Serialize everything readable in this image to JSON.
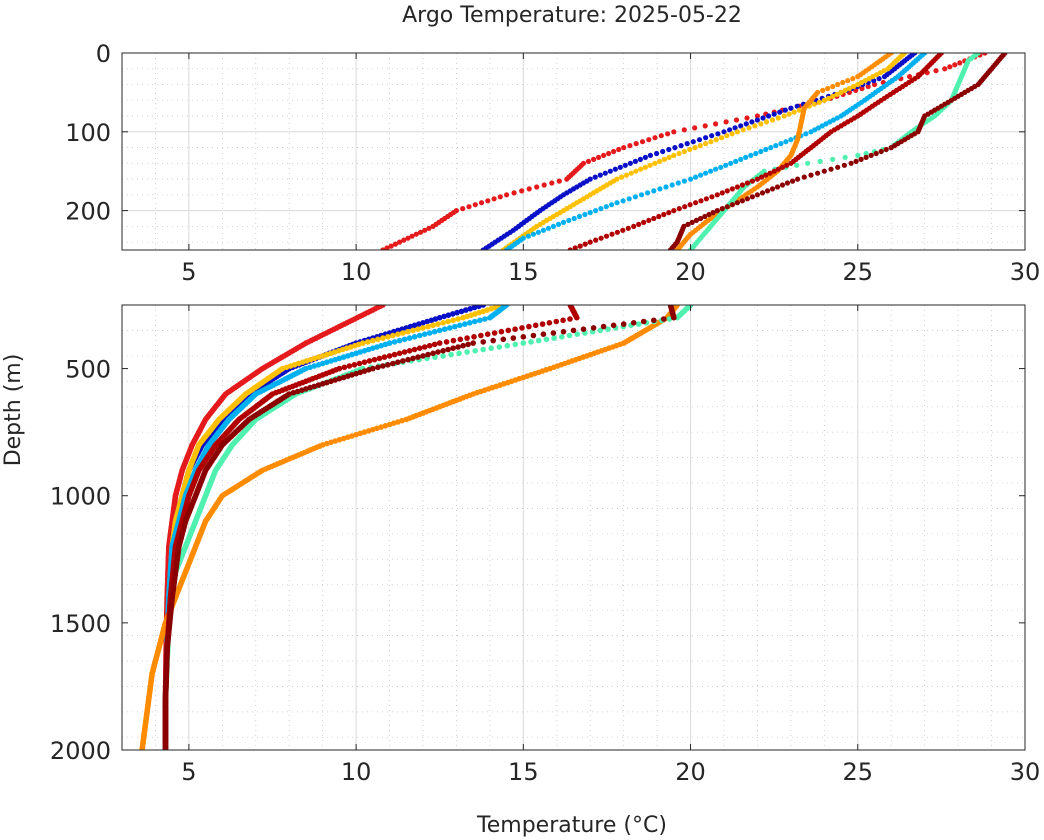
{
  "chart_data": {
    "type": "scatter",
    "title": "Argo Temperature: 2025-05-22",
    "xlabel": "Temperature (°C)",
    "ylabel": "Depth (m)",
    "grid": true,
    "panels": [
      {
        "name": "upper",
        "xlim": [
          3,
          30
        ],
        "ylim": [
          0,
          250
        ],
        "y_reversed": true,
        "xticks": [
          5,
          10,
          15,
          20,
          25,
          30
        ],
        "yticks": [
          0,
          100,
          200
        ]
      },
      {
        "name": "lower",
        "xlim": [
          3,
          30
        ],
        "ylim": [
          250,
          2000
        ],
        "y_reversed": true,
        "xticks": [
          5,
          10,
          15,
          20,
          25,
          30
        ],
        "yticks": [
          500,
          1000,
          1500,
          2000
        ]
      }
    ],
    "series": [
      {
        "color": "#e41a1c",
        "profile": [
          [
            0,
            28.8
          ],
          [
            20,
            27.6
          ],
          [
            40,
            25.5
          ],
          [
            60,
            24.0
          ],
          [
            80,
            22.0
          ],
          [
            100,
            19.5
          ],
          [
            120,
            18.0
          ],
          [
            140,
            16.8
          ],
          [
            160,
            16.3
          ],
          [
            180,
            14.5
          ],
          [
            200,
            13.0
          ],
          [
            220,
            12.3
          ],
          [
            250,
            10.8
          ],
          [
            400,
            8.5
          ],
          [
            500,
            7.2
          ],
          [
            600,
            6.1
          ],
          [
            700,
            5.5
          ],
          [
            800,
            5.1
          ],
          [
            900,
            4.8
          ],
          [
            1000,
            4.6
          ],
          [
            1100,
            4.5
          ],
          [
            1200,
            4.4
          ],
          [
            1400,
            4.35
          ],
          [
            1600,
            4.32
          ],
          [
            1800,
            4.3
          ],
          [
            2000,
            4.3
          ]
        ]
      },
      {
        "color": "#0a10c8",
        "profile": [
          [
            0,
            26.7
          ],
          [
            30,
            25.8
          ],
          [
            50,
            24.5
          ],
          [
            70,
            23.0
          ],
          [
            100,
            21.0
          ],
          [
            130,
            18.8
          ],
          [
            160,
            17.0
          ],
          [
            180,
            16.2
          ],
          [
            200,
            15.5
          ],
          [
            225,
            14.7
          ],
          [
            250,
            13.8
          ],
          [
            300,
            12.5
          ],
          [
            400,
            10.0
          ],
          [
            500,
            8.0
          ],
          [
            600,
            6.8
          ],
          [
            700,
            6.0
          ],
          [
            800,
            5.4
          ],
          [
            900,
            5.0
          ],
          [
            1000,
            4.8
          ],
          [
            1100,
            4.6
          ],
          [
            1200,
            4.5
          ],
          [
            1400,
            4.4
          ],
          [
            1600,
            4.35
          ],
          [
            1800,
            4.3
          ],
          [
            2000,
            4.3
          ]
        ]
      },
      {
        "color": "#ffc000",
        "profile": [
          [
            0,
            26.4
          ],
          [
            20,
            25.9
          ],
          [
            40,
            25.0
          ],
          [
            60,
            24.0
          ],
          [
            80,
            22.8
          ],
          [
            100,
            21.4
          ],
          [
            130,
            19.5
          ],
          [
            160,
            17.8
          ],
          [
            190,
            16.6
          ],
          [
            220,
            15.4
          ],
          [
            250,
            14.4
          ],
          [
            300,
            13.2
          ],
          [
            400,
            10.2
          ],
          [
            500,
            7.8
          ],
          [
            600,
            6.7
          ],
          [
            700,
            5.9
          ],
          [
            800,
            5.3
          ],
          [
            900,
            5.0
          ],
          [
            1000,
            4.8
          ],
          [
            1100,
            4.6
          ],
          [
            1200,
            4.5
          ],
          [
            1400,
            4.4
          ],
          [
            1600,
            4.35
          ],
          [
            1800,
            4.3
          ],
          [
            2000,
            4.3
          ]
        ]
      },
      {
        "color": "#00b0f0",
        "profile": [
          [
            0,
            27.0
          ],
          [
            30,
            26.2
          ],
          [
            60,
            25.2
          ],
          [
            80,
            24.5
          ],
          [
            100,
            23.6
          ],
          [
            130,
            21.8
          ],
          [
            160,
            20.0
          ],
          [
            190,
            17.8
          ],
          [
            215,
            16.2
          ],
          [
            235,
            15.0
          ],
          [
            250,
            14.5
          ],
          [
            300,
            14.0
          ],
          [
            400,
            11.0
          ],
          [
            500,
            8.5
          ],
          [
            600,
            7.0
          ],
          [
            700,
            6.2
          ],
          [
            800,
            5.6
          ],
          [
            900,
            5.2
          ],
          [
            1000,
            4.9
          ],
          [
            1100,
            4.7
          ],
          [
            1200,
            4.5
          ],
          [
            1400,
            4.4
          ],
          [
            1600,
            4.35
          ],
          [
            1800,
            4.3
          ],
          [
            2000,
            4.3
          ]
        ]
      },
      {
        "color": "#ff8c00",
        "profile": [
          [
            0,
            26.0
          ],
          [
            30,
            25.0
          ],
          [
            50,
            23.8
          ],
          [
            70,
            23.4
          ],
          [
            90,
            23.3
          ],
          [
            110,
            23.2
          ],
          [
            130,
            23.0
          ],
          [
            150,
            22.6
          ],
          [
            170,
            22.0
          ],
          [
            190,
            21.3
          ],
          [
            210,
            20.6
          ],
          [
            230,
            20.0
          ],
          [
            250,
            19.6
          ],
          [
            300,
            19.3
          ],
          [
            400,
            18.0
          ],
          [
            500,
            15.8
          ],
          [
            600,
            13.5
          ],
          [
            700,
            11.5
          ],
          [
            800,
            9.0
          ],
          [
            900,
            7.2
          ],
          [
            1000,
            6.0
          ],
          [
            1100,
            5.5
          ],
          [
            1200,
            5.2
          ],
          [
            1300,
            4.9
          ],
          [
            1400,
            4.6
          ],
          [
            1500,
            4.3
          ],
          [
            1600,
            4.1
          ],
          [
            1700,
            3.9
          ],
          [
            1800,
            3.8
          ],
          [
            1900,
            3.7
          ],
          [
            2000,
            3.6
          ]
        ]
      },
      {
        "color": "#50f0b0",
        "profile": [
          [
            0,
            28.6
          ],
          [
            10,
            28.3
          ],
          [
            30,
            28.1
          ],
          [
            60,
            27.8
          ],
          [
            80,
            27.3
          ],
          [
            100,
            26.6
          ],
          [
            120,
            26.0
          ],
          [
            130,
            25.0
          ],
          [
            140,
            23.5
          ],
          [
            150,
            22.2
          ],
          [
            170,
            21.6
          ],
          [
            190,
            21.2
          ],
          [
            210,
            20.8
          ],
          [
            230,
            20.4
          ],
          [
            250,
            20.0
          ],
          [
            300,
            19.6
          ],
          [
            400,
            15.0
          ],
          [
            500,
            10.2
          ],
          [
            600,
            8.2
          ],
          [
            700,
            7.0
          ],
          [
            800,
            6.3
          ],
          [
            900,
            5.8
          ],
          [
            1000,
            5.5
          ],
          [
            1100,
            5.2
          ],
          [
            1200,
            4.9
          ],
          [
            1300,
            4.6
          ],
          [
            1500,
            4.4
          ],
          [
            1800,
            4.3
          ],
          [
            2000,
            4.3
          ]
        ]
      },
      {
        "color": "#b00000",
        "profile": [
          [
            0,
            27.5
          ],
          [
            30,
            26.8
          ],
          [
            60,
            25.7
          ],
          [
            80,
            25.0
          ],
          [
            100,
            24.2
          ],
          [
            120,
            23.6
          ],
          [
            140,
            23.0
          ],
          [
            160,
            22.0
          ],
          [
            180,
            20.8
          ],
          [
            200,
            19.5
          ],
          [
            220,
            18.3
          ],
          [
            240,
            17.0
          ],
          [
            250,
            16.4
          ],
          [
            300,
            16.6
          ],
          [
            400,
            12.5
          ],
          [
            500,
            9.5
          ],
          [
            600,
            7.5
          ],
          [
            700,
            6.5
          ],
          [
            800,
            5.8
          ],
          [
            900,
            5.3
          ],
          [
            1000,
            5.0
          ],
          [
            1100,
            4.8
          ],
          [
            1200,
            4.6
          ],
          [
            1400,
            4.45
          ],
          [
            1600,
            4.35
          ],
          [
            1800,
            4.3
          ],
          [
            2000,
            4.3
          ]
        ]
      },
      {
        "color": "#8b0000",
        "profile": [
          [
            0,
            29.4
          ],
          [
            20,
            29.0
          ],
          [
            40,
            28.6
          ],
          [
            60,
            27.8
          ],
          [
            80,
            27.0
          ],
          [
            100,
            26.8
          ],
          [
            120,
            26.0
          ],
          [
            140,
            24.8
          ],
          [
            160,
            23.2
          ],
          [
            180,
            22.0
          ],
          [
            200,
            20.8
          ],
          [
            220,
            19.8
          ],
          [
            240,
            19.6
          ],
          [
            250,
            19.4
          ],
          [
            300,
            19.5
          ],
          [
            400,
            13.5
          ],
          [
            500,
            10.5
          ],
          [
            600,
            8.0
          ],
          [
            700,
            6.8
          ],
          [
            800,
            6.0
          ],
          [
            900,
            5.5
          ],
          [
            1000,
            5.2
          ],
          [
            1100,
            4.9
          ],
          [
            1200,
            4.7
          ],
          [
            1400,
            4.5
          ],
          [
            1600,
            4.35
          ],
          [
            1800,
            4.3
          ],
          [
            2000,
            4.3
          ]
        ]
      }
    ]
  }
}
